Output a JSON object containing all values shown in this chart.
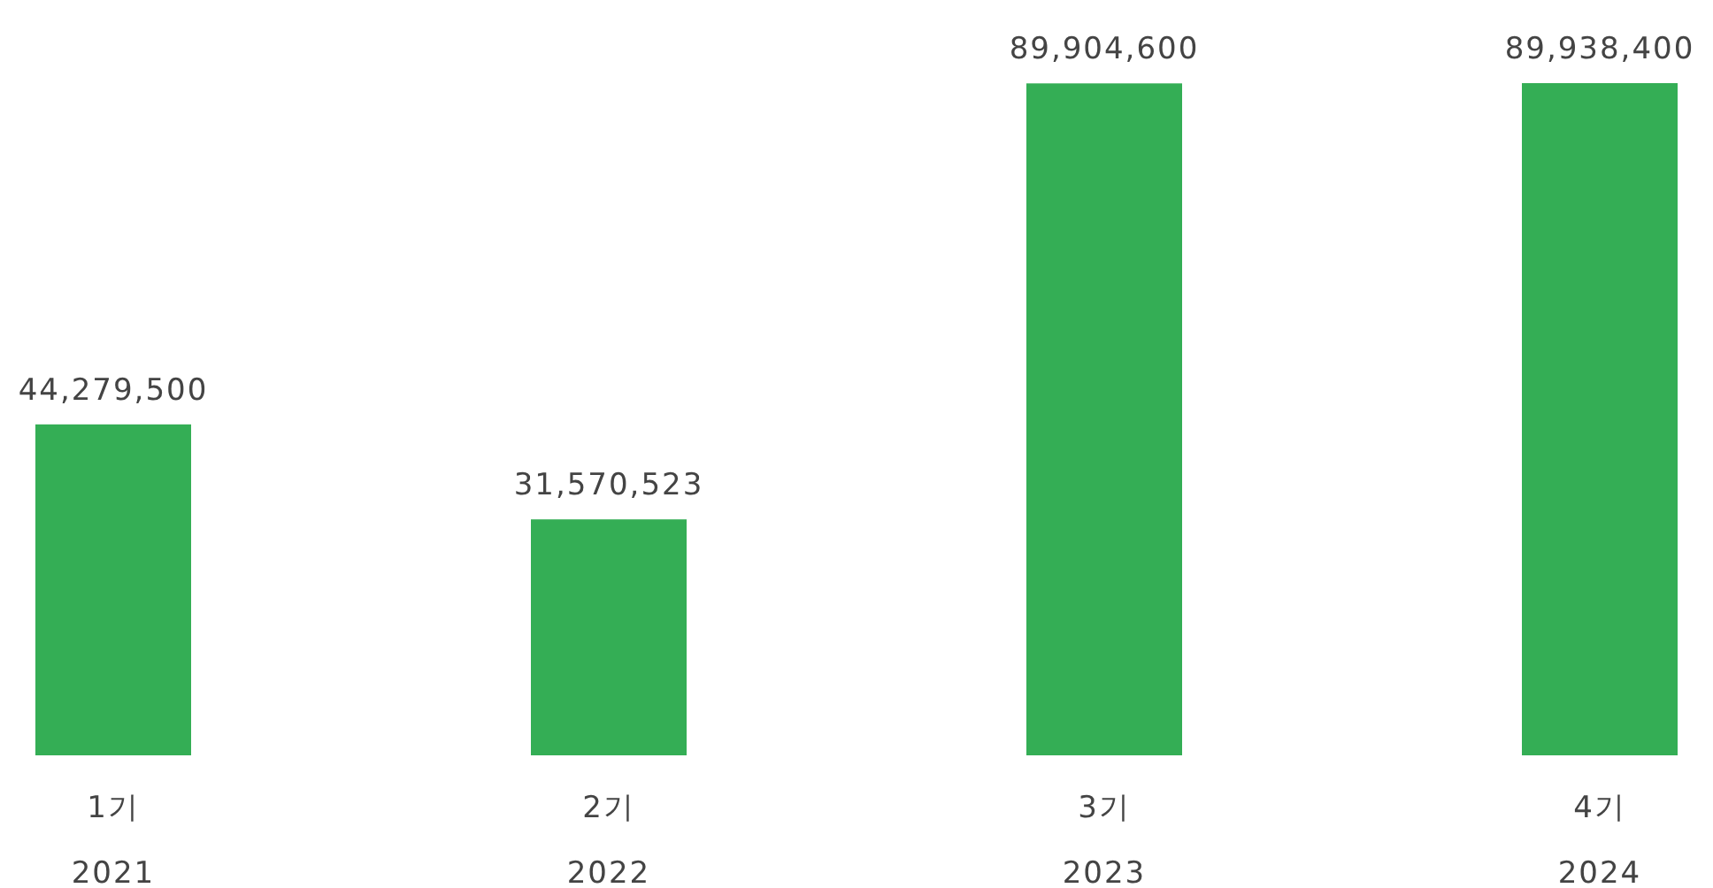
{
  "chart_data": {
    "type": "bar",
    "categories": [
      "1기\n2021",
      "2기\n2022",
      "3기\n2023",
      "4기\n2024"
    ],
    "values": [
      44279500,
      31570523,
      89904600,
      89938400
    ],
    "value_labels": [
      "44,279,500",
      "31,570,523",
      "89,904,600",
      "89,938,400"
    ],
    "color": "#34ae55"
  }
}
